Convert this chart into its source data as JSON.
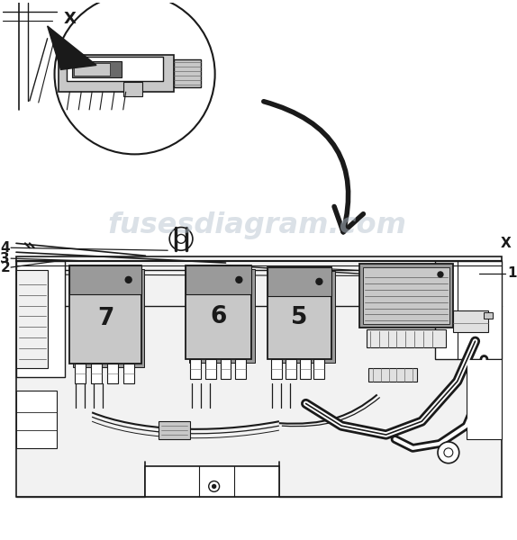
{
  "bg_color": "#ffffff",
  "lc": "#1a1a1a",
  "gray_med": "#9a9a9a",
  "gray_light": "#c8c8c8",
  "gray_dark": "#6a6a6a",
  "watermark_color": "#b8c4d0",
  "watermark_text": "fusesdiagram.com",
  "watermark_alpha": 0.5,
  "figsize": [
    5.74,
    6.0
  ],
  "dpi": 100
}
